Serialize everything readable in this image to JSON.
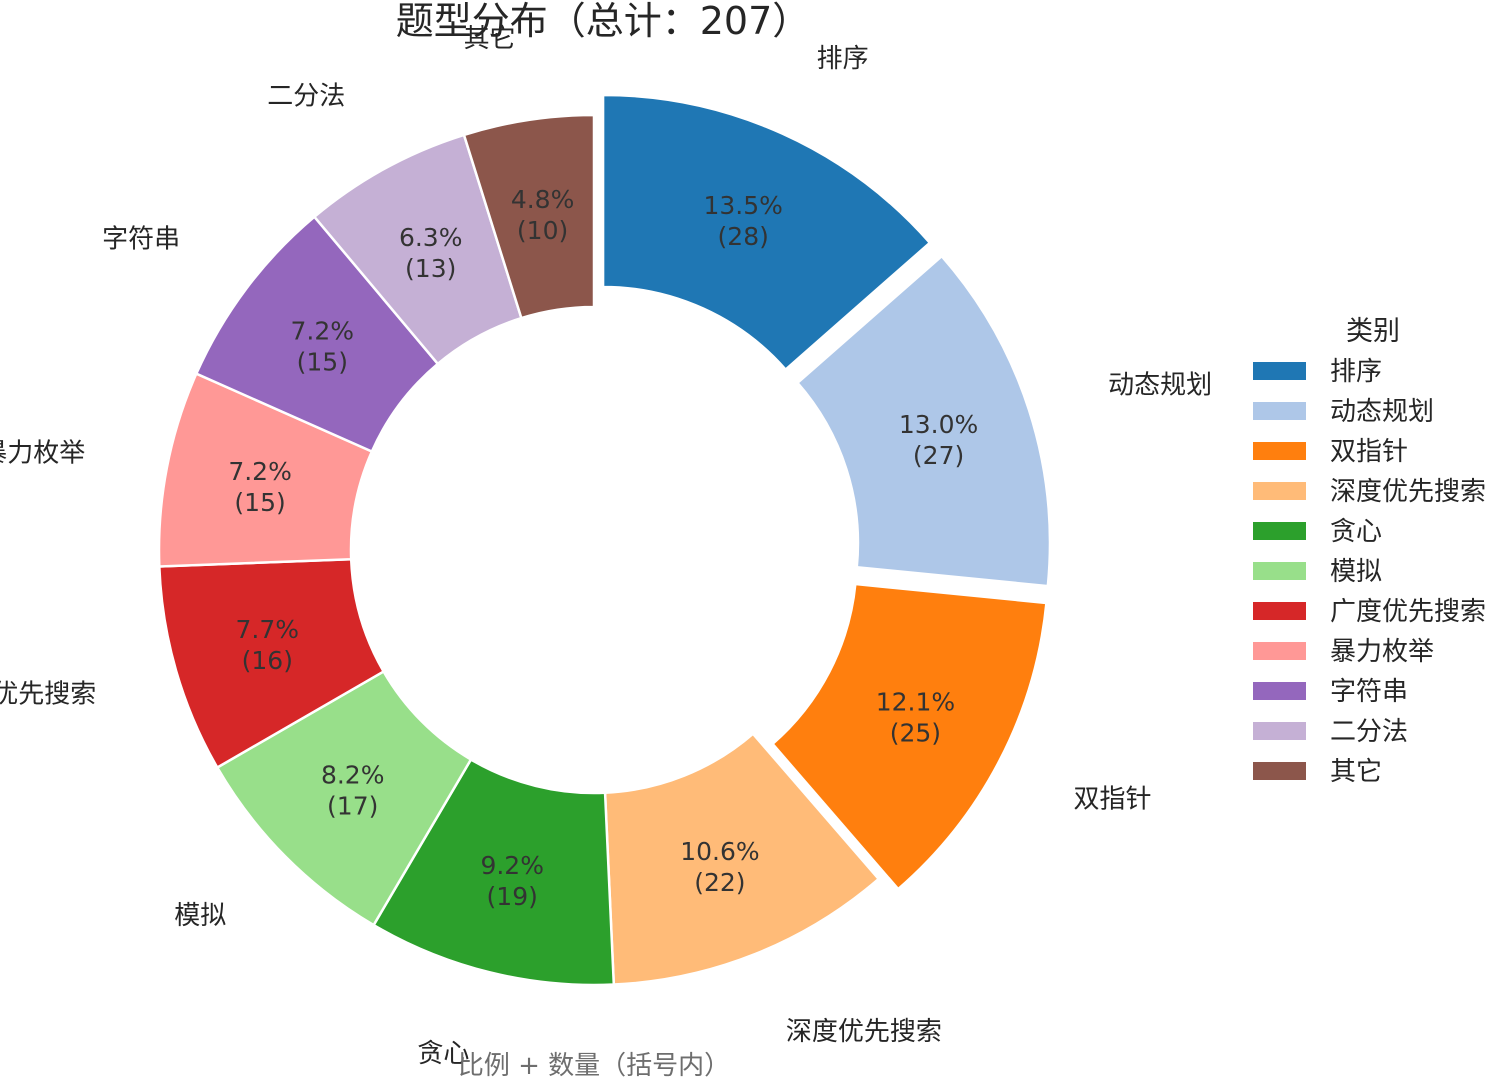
{
  "chart_data": {
    "type": "pie",
    "donut": true,
    "title": "题型分布（总计：207）",
    "xlabel": "比例 + 数量（括号内）",
    "total": 207,
    "legend": {
      "title": "类别",
      "placement": "right"
    },
    "slices": [
      {
        "label": "排序",
        "value": 28,
        "percent_label": "13.5%",
        "count_label": "(28)",
        "color": "#1f77b4",
        "exploded": true
      },
      {
        "label": "动态规划",
        "value": 27,
        "percent_label": "13.0%",
        "count_label": "(27)",
        "color": "#aec7e8",
        "exploded": true
      },
      {
        "label": "双指针",
        "value": 25,
        "percent_label": "12.1%",
        "count_label": "(25)",
        "color": "#ff7f0e",
        "exploded": true
      },
      {
        "label": "深度优先搜索",
        "value": 22,
        "percent_label": "10.6%",
        "count_label": "(22)",
        "color": "#ffbb78",
        "exploded": false
      },
      {
        "label": "贪心",
        "value": 19,
        "percent_label": "9.2%",
        "count_label": "(19)",
        "color": "#2ca02c",
        "exploded": false
      },
      {
        "label": "模拟",
        "value": 17,
        "percent_label": "8.2%",
        "count_label": "(17)",
        "color": "#98df8a",
        "exploded": false
      },
      {
        "label": "广度优先搜索",
        "value": 16,
        "percent_label": "7.7%",
        "count_label": "(16)",
        "color": "#d62728",
        "exploded": false
      },
      {
        "label": "暴力枚举",
        "value": 15,
        "percent_label": "7.2%",
        "count_label": "(15)",
        "color": "#ff9896",
        "exploded": false
      },
      {
        "label": "字符串",
        "value": 15,
        "percent_label": "7.2%",
        "count_label": "(15)",
        "color": "#9467bd",
        "exploded": false
      },
      {
        "label": "二分法",
        "value": 13,
        "percent_label": "6.3%",
        "count_label": "(13)",
        "color": "#c5b0d5",
        "exploded": false
      },
      {
        "label": "其它",
        "value": 10,
        "percent_label": "4.8%",
        "count_label": "(10)",
        "color": "#8c564b",
        "exploded": false
      }
    ]
  }
}
